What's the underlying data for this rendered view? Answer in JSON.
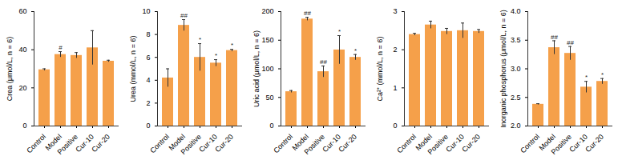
{
  "chart_data": [
    {
      "type": "bar",
      "ylabel": "Crea (μmol/L, n = 6)",
      "color": "#f5a04a",
      "categories": [
        "Control",
        "Model",
        "Positive",
        "Cur-10",
        "Cur-20"
      ],
      "values": [
        29.5,
        37.5,
        37,
        41,
        34
      ],
      "errors": [
        0.5,
        1.5,
        1.5,
        9,
        0.5
      ],
      "annotations": [
        null,
        "#",
        null,
        null,
        null
      ],
      "ylim": [
        0,
        60
      ],
      "yticks": [
        0,
        20,
        40,
        60
      ]
    },
    {
      "type": "bar",
      "ylabel": "Urea (mmol/L, n = 6)",
      "color": "#f5a04a",
      "categories": [
        "Control",
        "Model",
        "Positive",
        "Cur-10",
        "Cur-20"
      ],
      "values": [
        4.2,
        8.8,
        6.0,
        5.5,
        6.6
      ],
      "errors": [
        0.8,
        0.5,
        1.2,
        0.3,
        0.1
      ],
      "annotations": [
        null,
        "##",
        "*",
        "*",
        "*"
      ],
      "ylim": [
        0,
        10
      ],
      "yticks": [
        0,
        2,
        4,
        6,
        8,
        10
      ]
    },
    {
      "type": "bar",
      "ylabel": "Uric acid (μmol/L, n = 6)",
      "color": "#f5a04a",
      "categories": [
        "Control",
        "Model",
        "Positive",
        "Cur-10",
        "Cur-20"
      ],
      "values": [
        60,
        187,
        95,
        133,
        120
      ],
      "errors": [
        2,
        3,
        10,
        25,
        5
      ],
      "annotations": [
        null,
        "##",
        "##",
        "*",
        "*"
      ],
      "ylim": [
        0,
        200
      ],
      "yticks": [
        0,
        50,
        100,
        150,
        200
      ]
    },
    {
      "type": "bar",
      "ylabel": "Ca²⁺ (mmol/L, n = 6)",
      "color": "#f5a04a",
      "categories": [
        "Control",
        "Model",
        "Positive",
        "Cur-10",
        "Cur-20"
      ],
      "values": [
        2.4,
        2.65,
        2.48,
        2.5,
        2.48
      ],
      "errors": [
        0.03,
        0.1,
        0.08,
        0.2,
        0.05
      ],
      "annotations": [
        null,
        null,
        null,
        null,
        null
      ],
      "ylim": [
        0,
        3
      ],
      "yticks": [
        0,
        1,
        2,
        3
      ]
    },
    {
      "type": "bar",
      "ylabel": "Inorganic phosphorus (μmol/L, n = 6)",
      "color": "#f5a04a",
      "categories": [
        "Control",
        "Model",
        "Positive",
        "Cur-10",
        "Cur-20"
      ],
      "values": [
        2.38,
        3.37,
        3.27,
        2.68,
        2.78
      ],
      "errors": [
        0.01,
        0.12,
        0.12,
        0.1,
        0.05
      ],
      "annotations": [
        null,
        "##",
        "##",
        "*",
        "*"
      ],
      "ylim": [
        2.0,
        4.0
      ],
      "yticks": [
        {
          "value": 2.0,
          "label": "2.0"
        },
        {
          "value": 2.5,
          "label": "2.5"
        },
        {
          "value": 3.0,
          "label": "3.0"
        },
        {
          "value": 3.5,
          "label": "3.5"
        },
        {
          "value": 4.0,
          "label": "4.0"
        }
      ]
    }
  ]
}
